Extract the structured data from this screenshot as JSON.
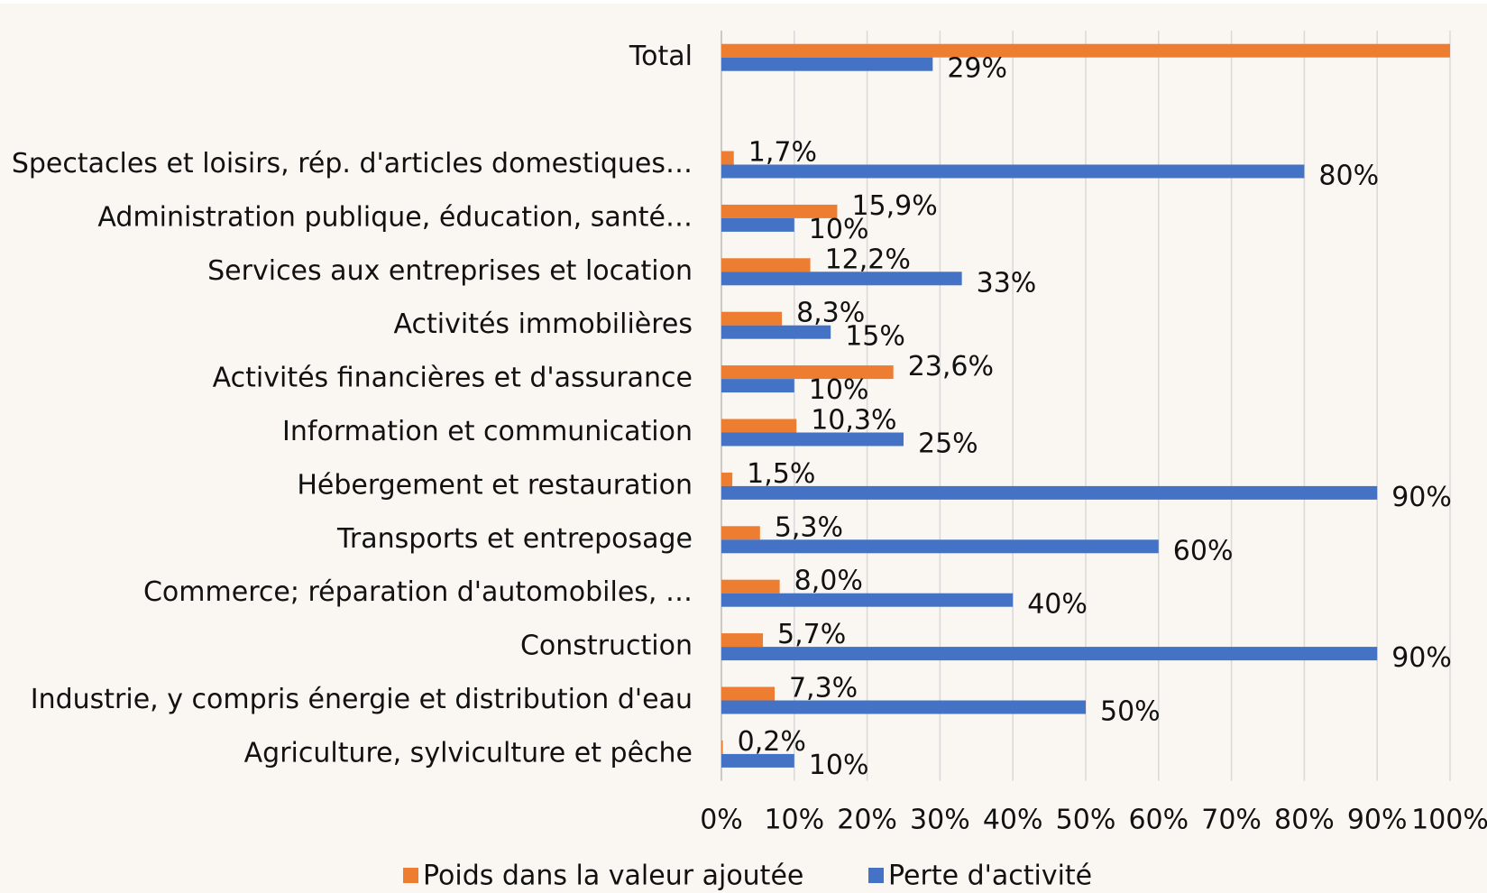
{
  "chart_data": {
    "type": "bar",
    "orientation": "horizontal",
    "categories": [
      "Total",
      null,
      "Spectacles et loisirs, rép. d'articles domestiques…",
      "Administration publique, éducation, santé…",
      "Services aux entreprises et location",
      "Activités immobilières",
      "Activités financières et d'assurance",
      "Information et communication",
      "Hébergement et restauration",
      "Transports et entreposage",
      "Commerce; réparation d'automobiles, …",
      "Construction",
      "Industrie, y compris énergie et distribution d'eau",
      "Agriculture, sylviculture et pêche"
    ],
    "series": [
      {
        "name": "Poids dans la valeur ajoutée",
        "color": "#ed7d31",
        "values": [
          100,
          null,
          1.7,
          15.9,
          12.2,
          8.3,
          23.6,
          10.3,
          1.5,
          5.3,
          8.0,
          5.7,
          7.3,
          0.2
        ],
        "value_labels": [
          null,
          null,
          "1,7%",
          "15,9%",
          "12,2%",
          "8,3%",
          "23,6%",
          "10,3%",
          "1,5%",
          "5,3%",
          "8,0%",
          "5,7%",
          "7,3%",
          "0,2%"
        ]
      },
      {
        "name": "Perte d'activité",
        "color": "#4472c4",
        "values": [
          29,
          null,
          80,
          10,
          33,
          15,
          10,
          25,
          90,
          60,
          40,
          90,
          50,
          10
        ],
        "value_labels": [
          "29%",
          null,
          "80%",
          "10%",
          "33%",
          "15%",
          "10%",
          "25%",
          "90%",
          "60%",
          "40%",
          "90%",
          "50%",
          "10%"
        ]
      }
    ],
    "xlim": [
      0,
      100
    ],
    "xticks": [
      {
        "value": 0,
        "label": "0%"
      },
      {
        "value": 10,
        "label": "10%"
      },
      {
        "value": 20,
        "label": "20%"
      },
      {
        "value": 30,
        "label": "30%"
      },
      {
        "value": 40,
        "label": "40%"
      },
      {
        "value": 50,
        "label": "50%"
      },
      {
        "value": 60,
        "label": "60%"
      },
      {
        "value": 70,
        "label": "70%"
      },
      {
        "value": 80,
        "label": "80%"
      },
      {
        "value": 90,
        "label": "90%"
      },
      {
        "value": 100,
        "label": "100%"
      }
    ],
    "grid": true,
    "legend": "bottom"
  }
}
